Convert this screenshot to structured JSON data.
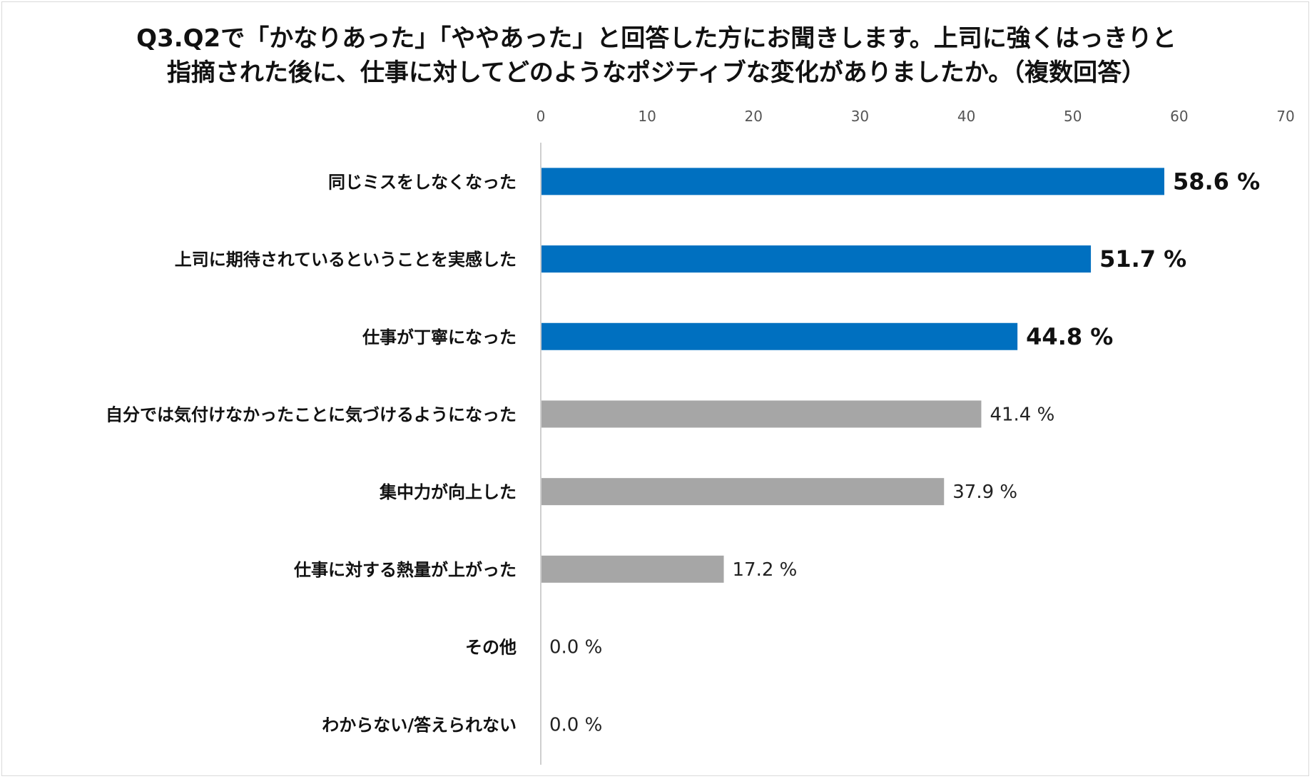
{
  "title_lines": [
    "Q3.Q2で「かなりあった」「ややあった」と回答した方にお聞きします。上司に強くはっきりと",
    "指摘された後に、仕事に対してどのようなポジティブな変化がありましたか。（複数回答）"
  ],
  "chart_data": {
    "type": "bar",
    "orientation": "horizontal",
    "title": "Q3.Q2で「かなりあった」「ややあった」と回答した方にお聞きします。上司に強くはっきりと指摘された後に、仕事に対してどのようなポジティブな変化がありましたか。（複数回答）",
    "categories": [
      "同じミスをしなくなった",
      "上司に期待されているということを実感した",
      "仕事が丁寧になった",
      "自分では気付けなかったことに気づけるようになった",
      "集中力が向上した",
      "仕事に対する熱量が上がった",
      "その他",
      "わからない/答えられない"
    ],
    "values": [
      58.6,
      51.7,
      44.8,
      41.4,
      37.9,
      17.2,
      0.0,
      0.0
    ],
    "value_labels": [
      "58.6 %",
      "51.7 %",
      "44.8 %",
      "41.4 %",
      "37.9 %",
      "17.2 %",
      "0.0 %",
      "0.0 %"
    ],
    "highlighted": [
      true,
      true,
      true,
      false,
      false,
      false,
      false,
      false
    ],
    "xlim": [
      0,
      70
    ],
    "xticks": [
      0,
      10,
      20,
      30,
      40,
      50,
      60,
      70
    ],
    "axis_position": "top",
    "grid": false,
    "colors": {
      "highlight": "#0070C0",
      "normal": "#A6A6A6",
      "axis": "#BFBFBF"
    }
  }
}
